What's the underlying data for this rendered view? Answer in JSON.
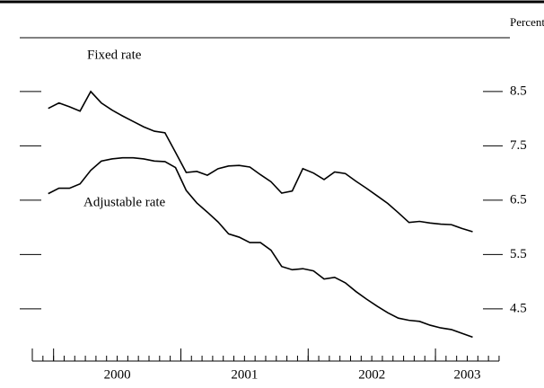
{
  "chart_data": {
    "type": "line",
    "y_axis_label": "Percent",
    "annotations": [
      "Fixed rate",
      "Adjustable rate"
    ],
    "x": [
      1999.958,
      2000.042,
      2000.125,
      2000.208,
      2000.292,
      2000.375,
      2000.458,
      2000.542,
      2000.625,
      2000.708,
      2000.792,
      2000.875,
      2000.958,
      2001.042,
      2001.125,
      2001.208,
      2001.292,
      2001.375,
      2001.458,
      2001.542,
      2001.625,
      2001.708,
      2001.792,
      2001.875,
      2001.958,
      2002.042,
      2002.125,
      2002.208,
      2002.292,
      2002.375,
      2002.458,
      2002.542,
      2002.625,
      2002.708,
      2002.792,
      2002.875,
      2002.958,
      2003.042,
      2003.125,
      2003.208,
      2003.292
    ],
    "series": [
      {
        "name": "Fixed rate",
        "color": "#000000",
        "values": [
          8.19,
          8.29,
          8.22,
          8.14,
          8.5,
          8.29,
          8.16,
          8.05,
          7.95,
          7.85,
          7.77,
          7.74,
          7.38,
          7.01,
          7.03,
          6.96,
          7.08,
          7.13,
          7.14,
          7.11,
          6.97,
          6.84,
          6.63,
          6.67,
          7.08,
          7.0,
          6.88,
          7.02,
          6.99,
          6.85,
          6.72,
          6.58,
          6.44,
          6.27,
          6.09,
          6.11,
          6.08,
          6.06,
          6.05,
          5.98,
          5.92
        ]
      },
      {
        "name": "Adjustable rate",
        "color": "#000000",
        "values": [
          6.62,
          6.72,
          6.72,
          6.8,
          7.05,
          7.22,
          7.26,
          7.28,
          7.28,
          7.26,
          7.22,
          7.21,
          7.1,
          6.68,
          6.45,
          6.28,
          6.1,
          5.88,
          5.82,
          5.72,
          5.72,
          5.58,
          5.28,
          5.22,
          5.24,
          5.2,
          5.05,
          5.08,
          4.98,
          4.82,
          4.68,
          4.55,
          4.43,
          4.33,
          4.29,
          4.27,
          4.2,
          4.15,
          4.12,
          4.05,
          3.98
        ]
      }
    ],
    "xlim": [
      1999.833,
      2003.5
    ],
    "xticks": [
      2000,
      2001,
      2002,
      2003
    ],
    "ylim": [
      3.54,
      9.49
    ],
    "yticks": [
      4.5,
      5.5,
      6.5,
      7.5,
      8.5
    ],
    "grid": false
  }
}
